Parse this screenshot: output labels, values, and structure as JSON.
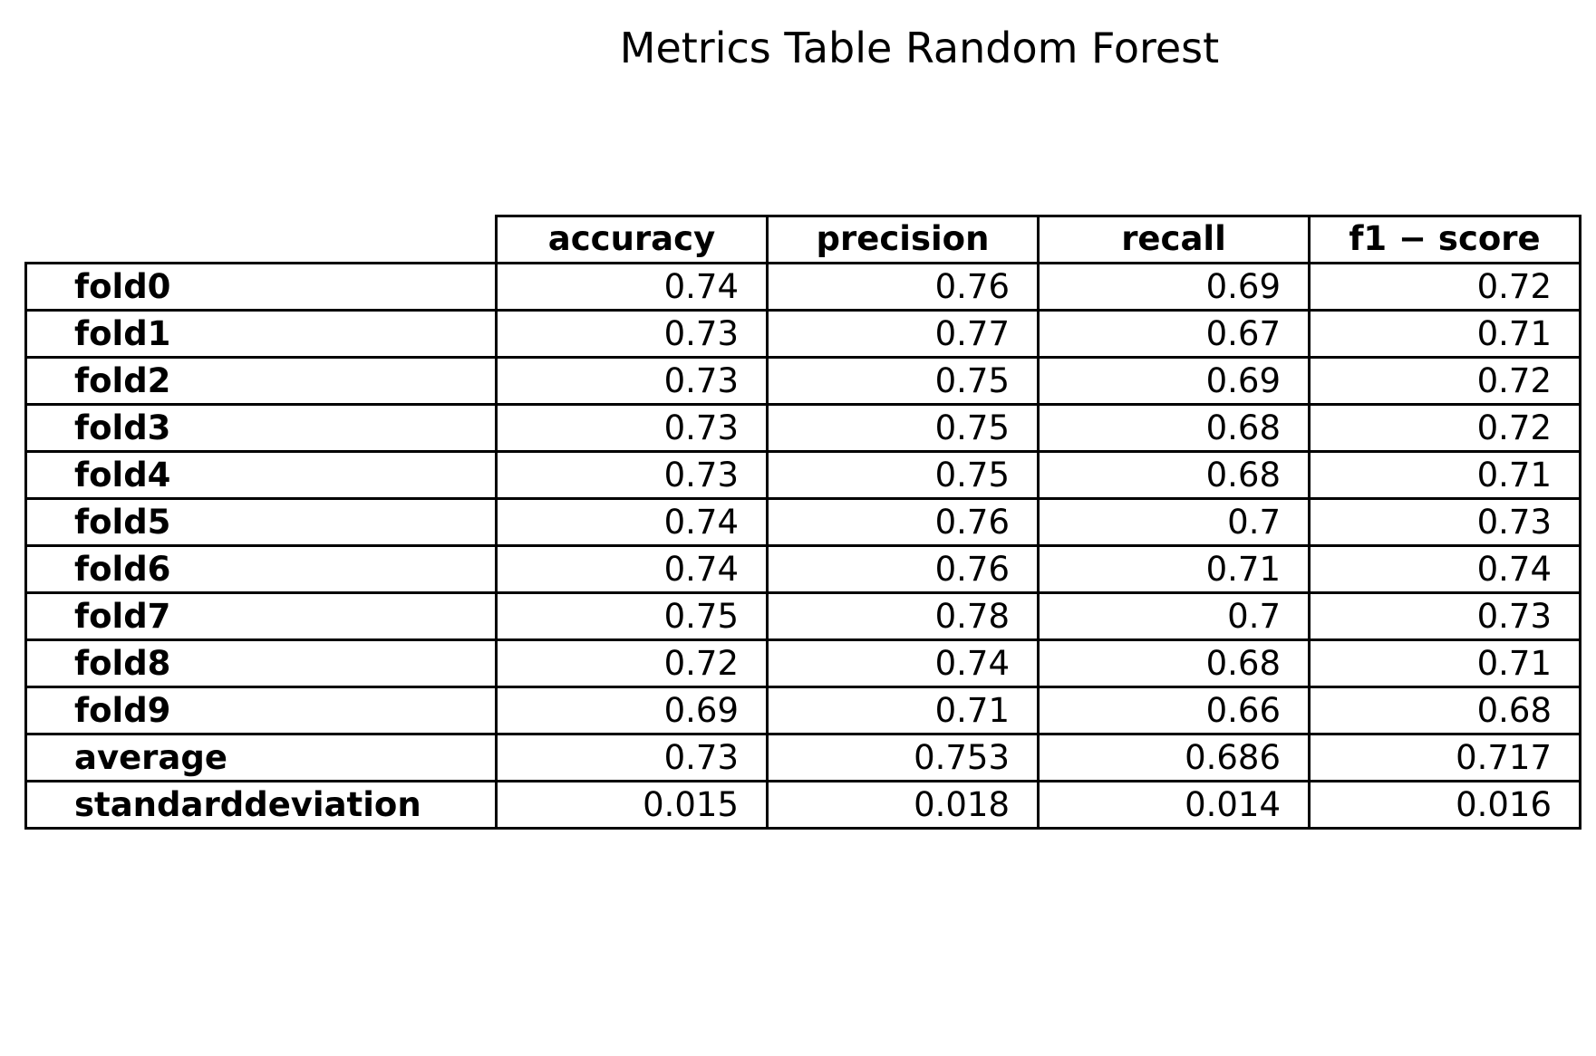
{
  "chart_data": {
    "type": "table",
    "title": "Metrics Table Random Forest",
    "columns": [
      "accuracy",
      "precision",
      "recall",
      "f1 − score"
    ],
    "rows": [
      {
        "label": "fold0",
        "values": [
          "0.74",
          "0.76",
          "0.69",
          "0.72"
        ]
      },
      {
        "label": "fold1",
        "values": [
          "0.73",
          "0.77",
          "0.67",
          "0.71"
        ]
      },
      {
        "label": "fold2",
        "values": [
          "0.73",
          "0.75",
          "0.69",
          "0.72"
        ]
      },
      {
        "label": "fold3",
        "values": [
          "0.73",
          "0.75",
          "0.68",
          "0.72"
        ]
      },
      {
        "label": "fold4",
        "values": [
          "0.73",
          "0.75",
          "0.68",
          "0.71"
        ]
      },
      {
        "label": "fold5",
        "values": [
          "0.74",
          "0.76",
          "0.7",
          "0.73"
        ]
      },
      {
        "label": "fold6",
        "values": [
          "0.74",
          "0.76",
          "0.71",
          "0.74"
        ]
      },
      {
        "label": "fold7",
        "values": [
          "0.75",
          "0.78",
          "0.7",
          "0.73"
        ]
      },
      {
        "label": "fold8",
        "values": [
          "0.72",
          "0.74",
          "0.68",
          "0.71"
        ]
      },
      {
        "label": "fold9",
        "values": [
          "0.69",
          "0.71",
          "0.66",
          "0.68"
        ]
      },
      {
        "label": "average",
        "values": [
          "0.73",
          "0.753",
          "0.686",
          "0.717"
        ]
      },
      {
        "label": "standarddeviation",
        "values": [
          "0.015",
          "0.018",
          "0.014",
          "0.016"
        ]
      }
    ]
  }
}
